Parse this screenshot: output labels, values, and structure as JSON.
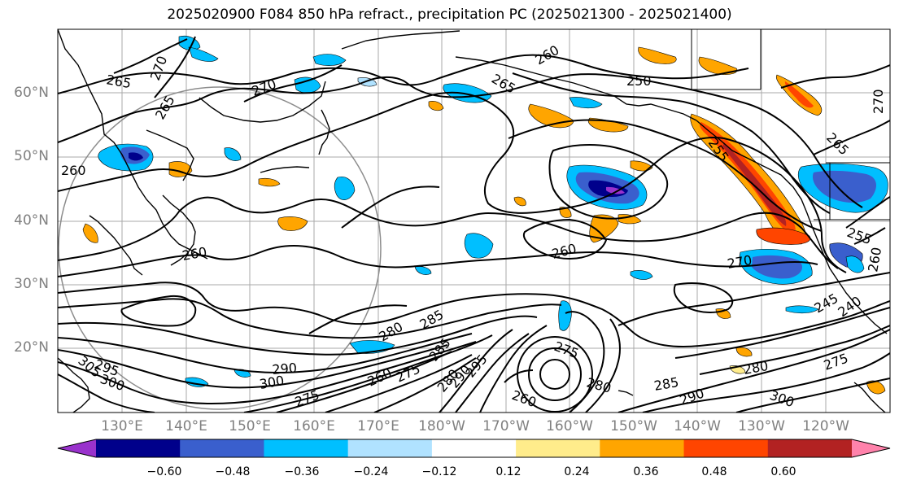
{
  "title": "2025020900 F084 850 hPa refract., precipitation PC (2025021300 - 2025021400)",
  "latitude_labels": [
    "60°N",
    "50°N",
    "40°N",
    "30°N",
    "20°N"
  ],
  "longitude_labels": [
    "130°E",
    "140°E",
    "150°E",
    "160°E",
    "170°E",
    "180°W",
    "170°W",
    "160°W",
    "150°W",
    "140°W",
    "130°W",
    "120°W"
  ],
  "contour_labels": [
    "265",
    "270",
    "270",
    "260",
    "265",
    "265",
    "250",
    "260",
    "255",
    "265",
    "270",
    "260",
    "260",
    "270",
    "255",
    "260",
    "245",
    "240",
    "280",
    "285",
    "295",
    "290",
    "300",
    "295",
    "305",
    "300",
    "275",
    "260",
    "275",
    "280",
    "290",
    "285",
    "260",
    "275",
    "280",
    "300",
    "275",
    "280",
    "290",
    "285"
  ],
  "colorbar": {
    "tick_labels": [
      "−0.60",
      "−0.48",
      "−0.36",
      "−0.24",
      "−0.12",
      "0.12",
      "0.24",
      "0.36",
      "0.48",
      "0.60"
    ],
    "colors": [
      "#9932cc",
      "#00008b",
      "#3a5fcd",
      "#00bfff",
      "#b0e2ff",
      "#ffffff",
      "#ffec8b",
      "#ffa500",
      "#ff4500",
      "#b22222",
      "#ff82ab"
    ]
  },
  "colors": {
    "contour": "#000000",
    "coastline": "#000000",
    "grid": "#a0a0a0",
    "tick_text": "#808080"
  }
}
